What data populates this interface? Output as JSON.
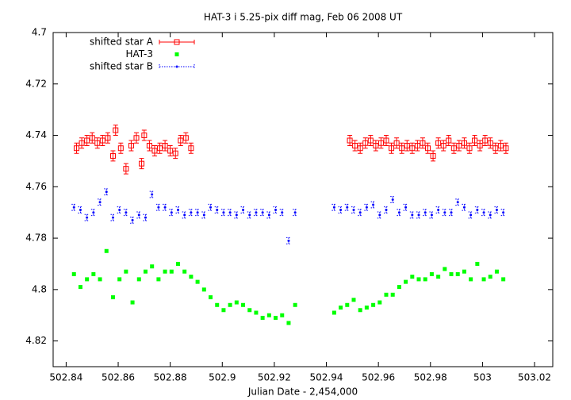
{
  "chart_data": {
    "type": "errorbar-scatter",
    "title": "HAT-3 i 5.25-pix diff mag, Feb 06 2008 UT",
    "xlabel": "Julian Date - 2,454,000",
    "xlim": [
      502.835,
      503.027
    ],
    "ylim": [
      4.83,
      4.7
    ],
    "xticks": [
      502.84,
      502.86,
      502.88,
      502.9,
      502.92,
      502.94,
      502.96,
      502.98,
      503,
      503.02
    ],
    "yticks": [
      4.7,
      4.72,
      4.74,
      4.76,
      4.78,
      4.8,
      4.82
    ],
    "legend": "top-left",
    "grid": false,
    "series": [
      {
        "name": "shifted star A",
        "color": "#ff0000",
        "marker": "open-square",
        "error": 0.002,
        "x": [
          502.844,
          502.846,
          502.848,
          502.85,
          502.852,
          502.854,
          502.856,
          502.858,
          502.859,
          502.861,
          502.863,
          502.865,
          502.867,
          502.869,
          502.87,
          502.872,
          502.874,
          502.876,
          502.878,
          502.88,
          502.882,
          502.884,
          502.886,
          502.888,
          502.949,
          502.951,
          502.953,
          502.955,
          502.957,
          502.959,
          502.961,
          502.963,
          502.965,
          502.967,
          502.969,
          502.971,
          502.973,
          502.975,
          502.977,
          502.979,
          502.981,
          502.983,
          502.985,
          502.987,
          502.989,
          502.991,
          502.993,
          502.995,
          502.997,
          502.999,
          503.001,
          503.003,
          503.005,
          503.007,
          503.009
        ],
        "values": [
          4.745,
          4.743,
          4.742,
          4.741,
          4.743,
          4.742,
          4.741,
          4.748,
          4.738,
          4.745,
          4.753,
          4.744,
          4.741,
          4.751,
          4.74,
          4.744,
          4.746,
          4.745,
          4.744,
          4.746,
          4.747,
          4.742,
          4.741,
          4.745,
          4.742,
          4.744,
          4.745,
          4.743,
          4.742,
          4.744,
          4.743,
          4.742,
          4.745,
          4.743,
          4.745,
          4.744,
          4.745,
          4.744,
          4.743,
          4.745,
          4.748,
          4.743,
          4.744,
          4.742,
          4.745,
          4.744,
          4.743,
          4.745,
          4.742,
          4.744,
          4.742,
          4.743,
          4.745,
          4.744,
          4.745
        ]
      },
      {
        "name": "HAT-3",
        "color": "#00ff00",
        "marker": "square",
        "x": [
          502.843,
          502.8455,
          502.848,
          502.8505,
          502.853,
          502.8555,
          502.858,
          502.8605,
          502.863,
          502.8655,
          502.868,
          502.8705,
          502.873,
          502.8755,
          502.878,
          502.8805,
          502.883,
          502.8855,
          502.888,
          502.8905,
          502.893,
          502.8955,
          502.898,
          502.9005,
          502.903,
          502.9055,
          502.908,
          502.9105,
          502.913,
          502.9155,
          502.918,
          502.9205,
          502.923,
          502.9255,
          502.928,
          502.943,
          502.9455,
          502.948,
          502.9505,
          502.953,
          502.9555,
          502.958,
          502.9605,
          502.963,
          502.9655,
          502.968,
          502.9705,
          502.973,
          502.9755,
          502.978,
          502.9805,
          502.983,
          502.9855,
          502.988,
          502.9905,
          502.993,
          502.9955,
          502.998,
          503.0005,
          503.003,
          503.0055,
          503.008
        ],
        "values": [
          4.794,
          4.799,
          4.796,
          4.794,
          4.796,
          4.785,
          4.803,
          4.796,
          4.793,
          4.805,
          4.796,
          4.793,
          4.791,
          4.796,
          4.793,
          4.793,
          4.79,
          4.793,
          4.795,
          4.797,
          4.8,
          4.803,
          4.806,
          4.808,
          4.806,
          4.805,
          4.806,
          4.808,
          4.809,
          4.811,
          4.81,
          4.811,
          4.81,
          4.813,
          4.806,
          4.809,
          4.807,
          4.806,
          4.804,
          4.808,
          4.807,
          4.806,
          4.805,
          4.802,
          4.802,
          4.799,
          4.797,
          4.795,
          4.796,
          4.796,
          4.794,
          4.795,
          4.792,
          4.794,
          4.794,
          4.793,
          4.796,
          4.79,
          4.796,
          4.795,
          4.793,
          4.796
        ]
      },
      {
        "name": "shifted star B",
        "color": "#0000ff",
        "marker": "dot",
        "error": 0.0012,
        "x": [
          502.843,
          502.8455,
          502.848,
          502.8505,
          502.853,
          502.8555,
          502.858,
          502.8605,
          502.863,
          502.8655,
          502.868,
          502.8705,
          502.873,
          502.8755,
          502.878,
          502.8805,
          502.883,
          502.8855,
          502.888,
          502.8905,
          502.893,
          502.8955,
          502.898,
          502.9005,
          502.903,
          502.9055,
          502.908,
          502.9105,
          502.913,
          502.9155,
          502.918,
          502.9205,
          502.923,
          502.9255,
          502.928,
          502.943,
          502.9455,
          502.948,
          502.9505,
          502.953,
          502.9555,
          502.958,
          502.9605,
          502.963,
          502.9655,
          502.968,
          502.9705,
          502.973,
          502.9755,
          502.978,
          502.9805,
          502.983,
          502.9855,
          502.988,
          502.9905,
          502.993,
          502.9955,
          502.998,
          503.0005,
          503.003,
          503.0055,
          503.008
        ],
        "values": [
          4.768,
          4.769,
          4.772,
          4.77,
          4.766,
          4.762,
          4.772,
          4.769,
          4.77,
          4.773,
          4.771,
          4.772,
          4.763,
          4.768,
          4.768,
          4.77,
          4.769,
          4.771,
          4.77,
          4.77,
          4.771,
          4.768,
          4.769,
          4.77,
          4.77,
          4.771,
          4.769,
          4.771,
          4.77,
          4.77,
          4.771,
          4.769,
          4.77,
          4.781,
          4.77,
          4.768,
          4.769,
          4.768,
          4.769,
          4.77,
          4.768,
          4.767,
          4.771,
          4.769,
          4.765,
          4.77,
          4.768,
          4.771,
          4.771,
          4.77,
          4.771,
          4.769,
          4.77,
          4.77,
          4.766,
          4.768,
          4.771,
          4.769,
          4.77,
          4.771,
          4.769,
          4.77
        ]
      }
    ]
  }
}
